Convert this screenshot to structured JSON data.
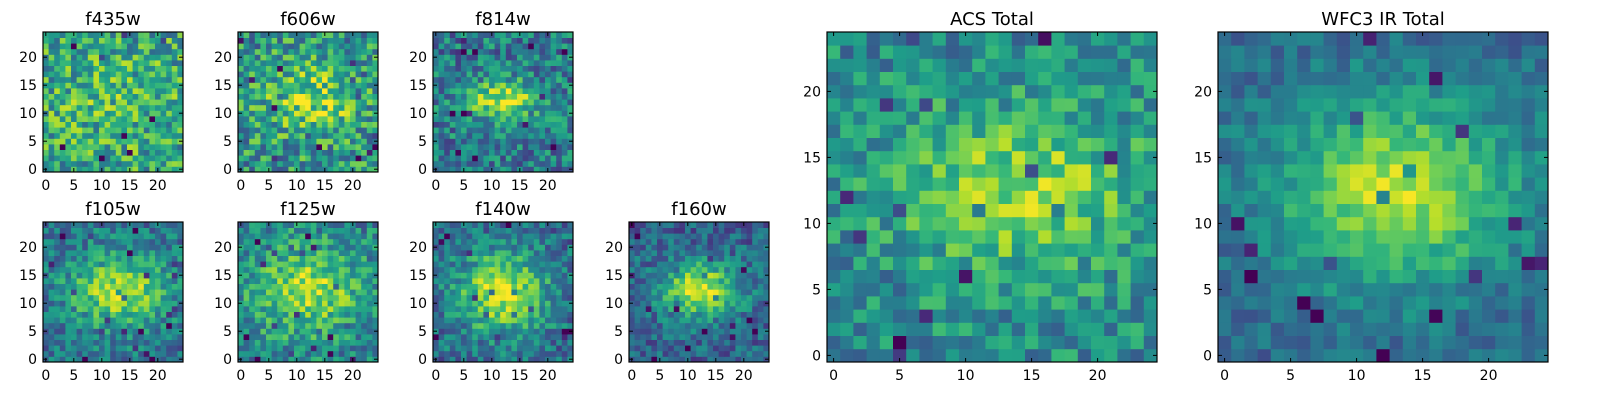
{
  "chart_data": [
    {
      "type": "heatmap",
      "title": "f435w",
      "xlim": [
        0,
        25
      ],
      "ylim": [
        0,
        25
      ],
      "xticks": [
        0,
        5,
        10,
        15,
        20
      ],
      "yticks": [
        0,
        5,
        10,
        15,
        20
      ],
      "colormap": "viridis",
      "grid": "25x25",
      "seed": 11,
      "blob": {
        "cx": 12,
        "cy": 12,
        "sx": 8,
        "sy": 6,
        "amp": 0.1
      },
      "base": 0.58,
      "noise": 0.28
    },
    {
      "type": "heatmap",
      "title": "f606w",
      "xlim": [
        0,
        25
      ],
      "ylim": [
        0,
        25
      ],
      "xticks": [
        0,
        5,
        10,
        15,
        20
      ],
      "yticks": [
        0,
        5,
        10,
        15,
        20
      ],
      "colormap": "viridis",
      "grid": "25x25",
      "seed": 22,
      "blob": {
        "cx": 13,
        "cy": 12.5,
        "sx": 6,
        "sy": 4.5,
        "amp": 0.3
      },
      "base": 0.52,
      "noise": 0.28
    },
    {
      "type": "heatmap",
      "title": "f814w",
      "xlim": [
        0,
        25
      ],
      "ylim": [
        0,
        25
      ],
      "xticks": [
        0,
        5,
        10,
        15,
        20
      ],
      "yticks": [
        0,
        5,
        10,
        15,
        20
      ],
      "colormap": "viridis",
      "grid": "25x25",
      "seed": 33,
      "blob": {
        "cx": 12,
        "cy": 12.5,
        "sx": 4.5,
        "sy": 2.2,
        "amp": 0.5
      },
      "base": 0.42,
      "noise": 0.24
    },
    {
      "type": "heatmap",
      "title": "f105w",
      "xlim": [
        0,
        25
      ],
      "ylim": [
        0,
        25
      ],
      "xticks": [
        0,
        5,
        10,
        15,
        20
      ],
      "yticks": [
        0,
        5,
        10,
        15,
        20
      ],
      "colormap": "viridis",
      "grid": "25x25",
      "seed": 44,
      "blob": {
        "cx": 13,
        "cy": 12.5,
        "sx": 6,
        "sy": 4.5,
        "amp": 0.5
      },
      "base": 0.38,
      "noise": 0.2
    },
    {
      "type": "heatmap",
      "title": "f125w",
      "xlim": [
        0,
        25
      ],
      "ylim": [
        0,
        25
      ],
      "xticks": [
        0,
        5,
        10,
        15,
        20
      ],
      "yticks": [
        0,
        5,
        10,
        15,
        20
      ],
      "colormap": "viridis",
      "grid": "25x25",
      "seed": 55,
      "blob": {
        "cx": 12,
        "cy": 12.5,
        "sx": 7,
        "sy": 5.5,
        "amp": 0.42
      },
      "base": 0.44,
      "noise": 0.22
    },
    {
      "type": "heatmap",
      "title": "f140w",
      "xlim": [
        0,
        25
      ],
      "ylim": [
        0,
        25
      ],
      "xticks": [
        0,
        5,
        10,
        15,
        20
      ],
      "yticks": [
        0,
        5,
        10,
        15,
        20
      ],
      "colormap": "viridis",
      "grid": "25x25",
      "seed": 66,
      "blob": {
        "cx": 12,
        "cy": 12,
        "sx": 5.5,
        "sy": 5,
        "amp": 0.55
      },
      "base": 0.36,
      "noise": 0.2
    },
    {
      "type": "heatmap",
      "title": "f160w",
      "xlim": [
        0,
        25
      ],
      "ylim": [
        0,
        25
      ],
      "xticks": [
        0,
        5,
        10,
        15,
        20
      ],
      "yticks": [
        0,
        5,
        10,
        15,
        20
      ],
      "colormap": "viridis",
      "grid": "25x25",
      "seed": 77,
      "blob": {
        "cx": 12,
        "cy": 12.5,
        "sx": 5,
        "sy": 3.5,
        "amp": 0.58
      },
      "base": 0.32,
      "noise": 0.18
    },
    {
      "type": "heatmap",
      "title": "ACS Total",
      "xlim": [
        0,
        25
      ],
      "ylim": [
        0,
        25
      ],
      "xticks": [
        0,
        5,
        10,
        15,
        20
      ],
      "yticks": [
        0,
        5,
        10,
        15,
        20
      ],
      "colormap": "viridis",
      "grid": "25x25",
      "seed": 88,
      "blob": {
        "cx": 14,
        "cy": 12.5,
        "sx": 6.5,
        "sy": 4,
        "amp": 0.38
      },
      "base": 0.48,
      "noise": 0.2
    },
    {
      "type": "heatmap",
      "title": "WFC3 IR Total",
      "xlim": [
        0,
        25
      ],
      "ylim": [
        0,
        25
      ],
      "xticks": [
        0,
        5,
        10,
        15,
        20
      ],
      "yticks": [
        0,
        5,
        10,
        15,
        20
      ],
      "colormap": "viridis",
      "grid": "25x25",
      "seed": 99,
      "blob": {
        "cx": 13,
        "cy": 12.5,
        "sx": 6.5,
        "sy": 5,
        "amp": 0.55
      },
      "base": 0.34,
      "noise": 0.12
    }
  ]
}
